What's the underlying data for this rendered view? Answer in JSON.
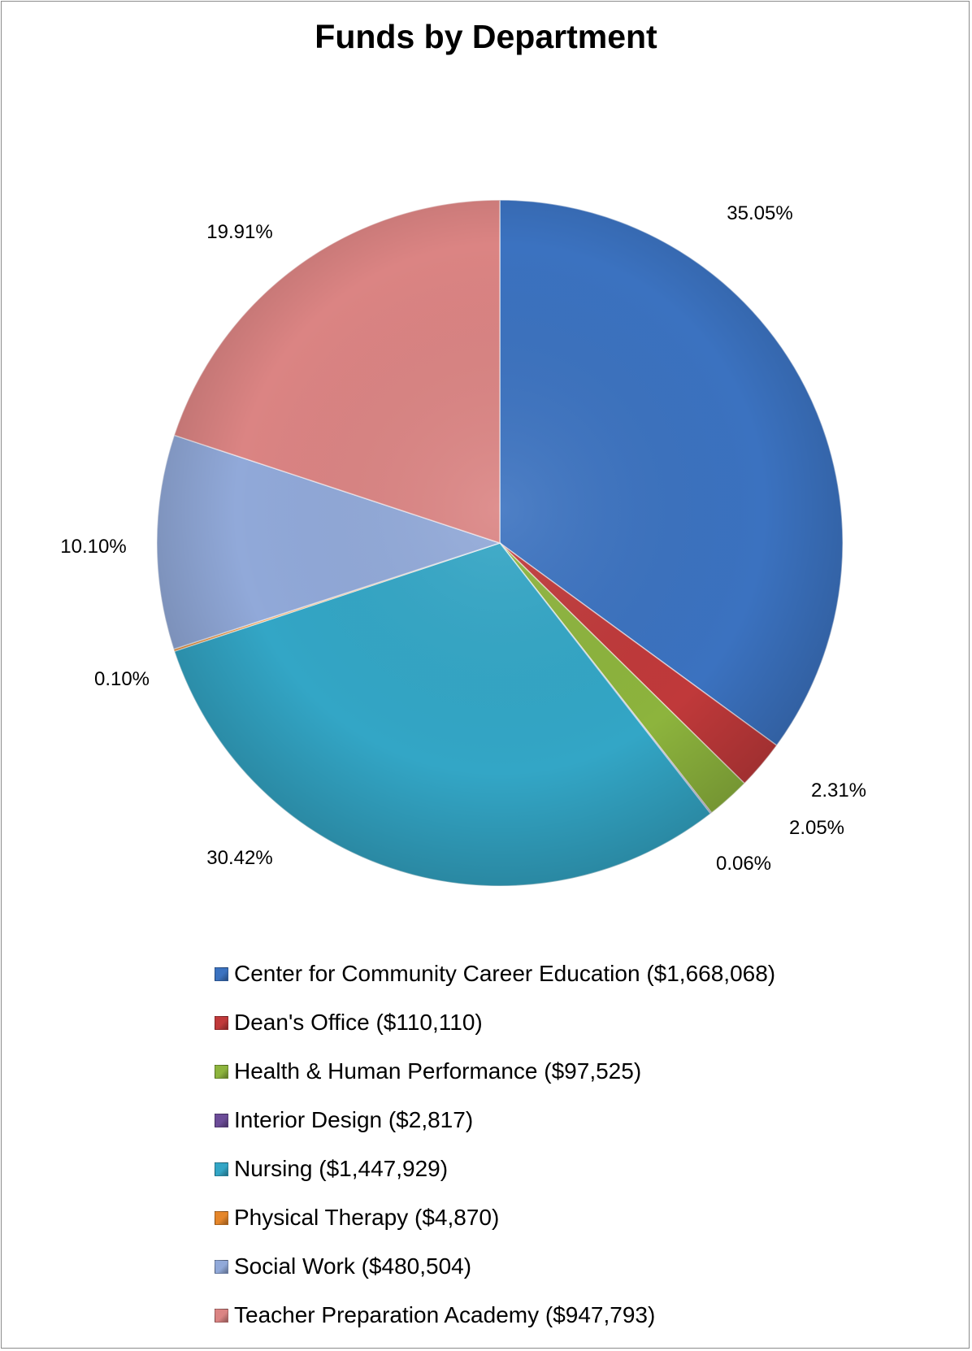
{
  "chart_data": {
    "type": "pie",
    "title": "Funds by Department",
    "slices": [
      {
        "name": "Center for Community Career Education",
        "value": 1668068,
        "label": "35.05%",
        "legend": "Center for Community Career Education ($1,668,068)",
        "color": "#3B72C0"
      },
      {
        "name": "Dean's Office",
        "value": 110110,
        "label": "2.31%",
        "legend": "Dean's Office ($110,110)",
        "color": "#C0393A"
      },
      {
        "name": "Health & Human Performance",
        "value": 97525,
        "label": "2.05%",
        "legend": "Health & Human Performance ($97,525)",
        "color": "#8DB43D"
      },
      {
        "name": "Interior Design",
        "value": 2817,
        "label": "0.06%",
        "legend": "Interior Design ($2,817)",
        "color": "#6C4C98"
      },
      {
        "name": "Nursing",
        "value": 1447929,
        "label": "30.42%",
        "legend": "Nursing ($1,447,929)",
        "color": "#33A6C6"
      },
      {
        "name": "Physical Therapy",
        "value": 4870,
        "label": "0.10%",
        "legend": "Physical Therapy ($4,870)",
        "color": "#E5862A"
      },
      {
        "name": "Social Work",
        "value": 480504,
        "label": "10.10%",
        "legend": "Social Work ($480,504)",
        "color": "#91A9D9"
      },
      {
        "name": "Teacher Preparation Academy",
        "value": 947793,
        "label": "19.91%",
        "legend": "Teacher Preparation Academy ($947,793)",
        "color": "#DB8483"
      }
    ],
    "start_angle": "12 o'clock",
    "direction": "clockwise",
    "legend_position": "bottom"
  }
}
